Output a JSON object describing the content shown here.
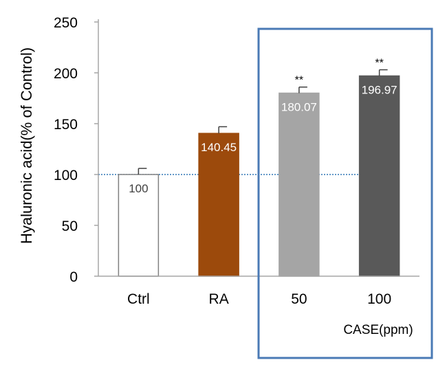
{
  "chart_data": {
    "type": "bar",
    "categories": [
      "Ctrl",
      "RA",
      "50",
      "100"
    ],
    "values": [
      100,
      140.45,
      180.07,
      196.97
    ],
    "value_labels": [
      "100",
      "140.45",
      "180.07",
      "196.97"
    ],
    "error_upper": [
      106,
      147,
      186,
      203
    ],
    "significance": [
      "",
      "",
      "**",
      "**"
    ],
    "ylabel": "Hyaluronic acid(% of Control)",
    "xlabel": "",
    "ylim": [
      0,
      250
    ],
    "yticks": [
      0,
      50,
      100,
      150,
      200,
      250
    ],
    "reference_line": 100,
    "group_label": "CASE(ppm)",
    "grid": false,
    "legend": "none",
    "colors": {
      "bars": [
        "#ffffff",
        "#9c4a0c",
        "#a5a5a5",
        "#595959"
      ],
      "bar_strokes": [
        "#808080",
        "#9c4a0c",
        "#a5a5a5",
        "#595959"
      ],
      "value_label_colors": [
        "#404040",
        "#ffffff",
        "#ffffff",
        "#ffffff"
      ],
      "reference_line": "#2e75b6",
      "group_box": "#4a7ab5"
    }
  }
}
